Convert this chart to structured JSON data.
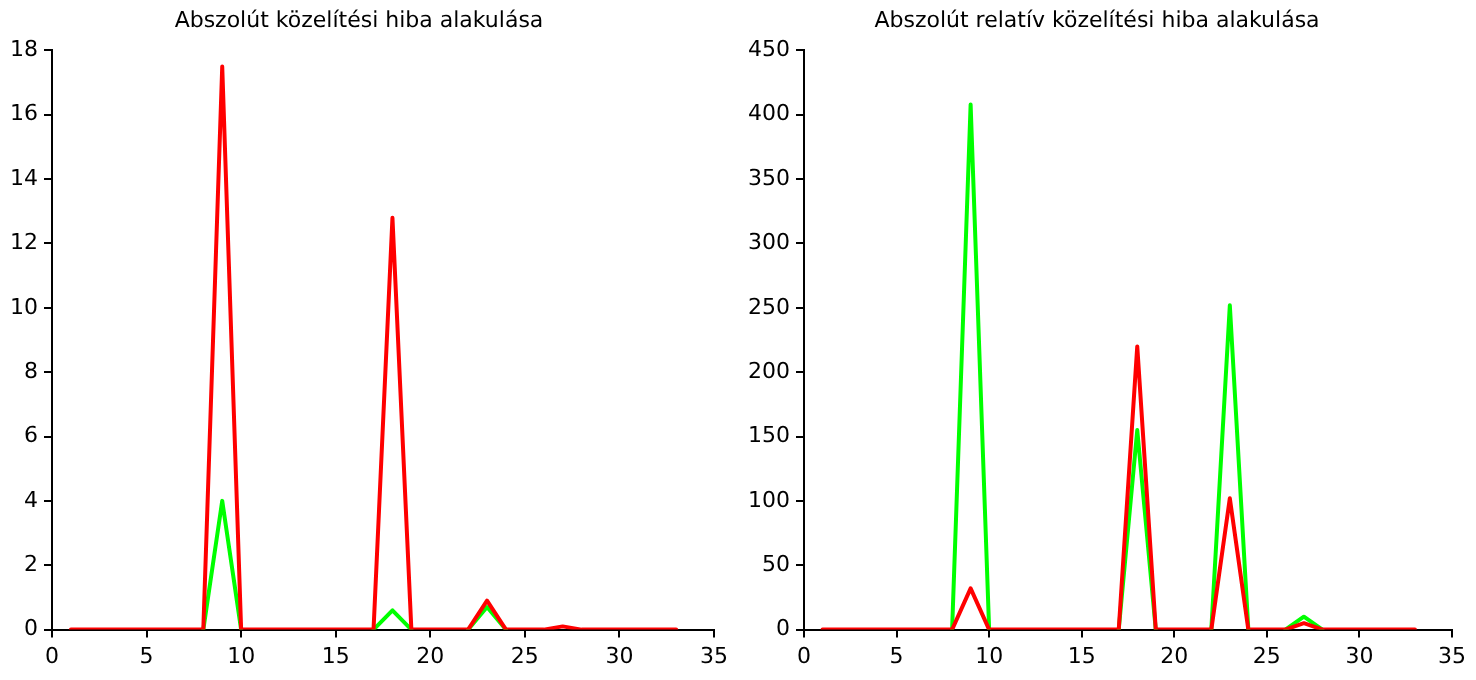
{
  "chart_data": [
    {
      "type": "line",
      "title": "Abszolút közelítési hiba alakulása",
      "x": [
        1,
        2,
        3,
        4,
        5,
        6,
        7,
        8,
        9,
        10,
        11,
        12,
        13,
        14,
        15,
        16,
        17,
        18,
        19,
        20,
        21,
        22,
        23,
        24,
        25,
        26,
        27,
        28,
        29,
        30,
        31,
        32,
        33
      ],
      "series": [
        {
          "color": "#00ff00",
          "values": [
            null,
            null,
            null,
            null,
            null,
            null,
            null,
            0,
            4,
            0,
            null,
            null,
            null,
            null,
            null,
            null,
            0,
            0.6,
            0,
            null,
            null,
            0,
            0.7,
            0,
            null,
            null,
            null,
            null,
            null,
            null,
            null,
            null,
            null
          ]
        },
        {
          "color": "#ff0000",
          "values": [
            0,
            0,
            0,
            0,
            0,
            0,
            0,
            0,
            17.5,
            0,
            0,
            0,
            0,
            0,
            0,
            0,
            0,
            12.8,
            0,
            0,
            0,
            0,
            0.9,
            0,
            0,
            0,
            0.1,
            0,
            0,
            0,
            0,
            0,
            0
          ]
        }
      ],
      "xlim": [
        0,
        35
      ],
      "xticks": [
        0,
        5,
        10,
        15,
        20,
        25,
        30,
        35
      ],
      "ylim": [
        0,
        18
      ],
      "yticks": [
        0,
        2,
        4,
        6,
        8,
        10,
        12,
        14,
        16,
        18
      ],
      "grid": false,
      "legend": false,
      "marker": "none",
      "line_style": "solid"
    },
    {
      "type": "line",
      "title": "Abszolút relatív közelítési hiba alakulása",
      "x": [
        1,
        2,
        3,
        4,
        5,
        6,
        7,
        8,
        9,
        10,
        11,
        12,
        13,
        14,
        15,
        16,
        17,
        18,
        19,
        20,
        21,
        22,
        23,
        24,
        25,
        26,
        27,
        28,
        29,
        30,
        31,
        32,
        33
      ],
      "series": [
        {
          "color": "#00ff00",
          "values": [
            null,
            null,
            null,
            null,
            null,
            null,
            null,
            0,
            408,
            0,
            null,
            null,
            null,
            null,
            null,
            null,
            0,
            155,
            0,
            null,
            null,
            0,
            252,
            0,
            null,
            0,
            10,
            0,
            null,
            null,
            null,
            null,
            null
          ]
        },
        {
          "color": "#ff0000",
          "values": [
            0,
            0,
            0,
            0,
            0,
            0,
            0,
            0,
            32,
            0,
            0,
            0,
            0,
            0,
            0,
            0,
            0,
            220,
            0,
            0,
            0,
            0,
            102,
            0,
            0,
            0,
            5,
            0,
            0,
            0,
            0,
            0,
            0
          ]
        }
      ],
      "xlim": [
        0,
        35
      ],
      "xticks": [
        0,
        5,
        10,
        15,
        20,
        25,
        30,
        35
      ],
      "ylim": [
        0,
        450
      ],
      "yticks": [
        0,
        50,
        100,
        150,
        200,
        250,
        300,
        350,
        400,
        450
      ],
      "grid": false,
      "legend": false,
      "marker": "none",
      "line_style": "solid"
    }
  ]
}
